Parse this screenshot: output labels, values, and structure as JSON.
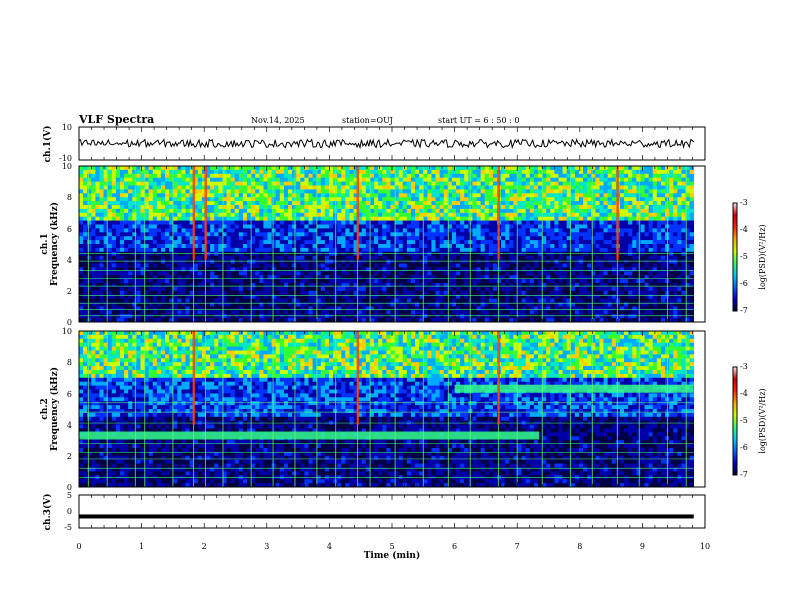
{
  "chart_data": {
    "type": "heatmap",
    "title": "VLF Spectra",
    "date": "Nov.14, 2025",
    "station": "station=OUJ",
    "start": "start  UT =  6 : 50 : 0",
    "xlabel": "Time  (min)",
    "xlim": [
      0,
      10
    ],
    "xticks": [
      "0",
      "1",
      "2",
      "3",
      "4",
      "5",
      "6",
      "7",
      "8",
      "9",
      "10"
    ],
    "data_end_min": 9.82,
    "panels": [
      {
        "id": "ch1-waveform",
        "ylabel": "ch.1(V)",
        "ylim": [
          -10,
          10
        ],
        "yticks": [
          "10",
          "-10"
        ],
        "baseline": 0,
        "noise_amplitude": 0.6
      },
      {
        "id": "ch1-spectrogram",
        "ylabel_line1": "ch.1",
        "ylabel_line2": "Frequency  (kHz)",
        "ylim": [
          0,
          10
        ],
        "yticks": [
          "0",
          "2",
          "4",
          "6",
          "8",
          "10"
        ],
        "features": {
          "low_band_kHz": [
            0,
            4
          ],
          "high_band_kHz": [
            6.5,
            10
          ],
          "horizontal_lines_kHz": [
            0.4,
            0.8,
            1.2,
            1.7,
            2.3,
            2.8,
            3.3,
            3.9,
            4.4
          ],
          "sferics_min": [
            0.15,
            0.45,
            0.9,
            1.05,
            1.5,
            1.83,
            2.02,
            2.3,
            2.75,
            3.1,
            3.45,
            3.8,
            4.1,
            4.45,
            4.65,
            5.05,
            5.5,
            5.9,
            6.25,
            6.7,
            7.0,
            7.4,
            7.85,
            8.2,
            8.6,
            8.95,
            9.4,
            9.7
          ],
          "strong_sferics_min": [
            1.83,
            2.02,
            4.45,
            6.7,
            8.6
          ]
        }
      },
      {
        "id": "ch2-spectrogram",
        "ylabel_line1": "ch.2",
        "ylabel_line2": "Frequency  (kHz)",
        "ylim": [
          0,
          10
        ],
        "yticks": [
          "0",
          "2",
          "4",
          "6",
          "8",
          "10"
        ],
        "features": {
          "emission_band": {
            "freq_kHz": 3.3,
            "t_start_min": 0,
            "t_end_min": 7.35
          },
          "emission_band_2": {
            "freq_kHz": 6.3,
            "t_start_min": 6.0,
            "t_end_min": 9.82
          },
          "horizontal_lines_kHz": [
            0.6,
            1.2,
            1.8,
            2.2,
            2.8,
            4.1,
            4.8,
            5.4
          ],
          "sferics_min": [
            0.15,
            0.45,
            0.9,
            1.05,
            1.5,
            1.83,
            2.02,
            2.3,
            2.75,
            3.1,
            3.45,
            3.8,
            4.1,
            4.45,
            4.65,
            5.05,
            5.5,
            5.9,
            6.25,
            6.7,
            7.0,
            7.4,
            7.85,
            8.2,
            8.6,
            8.95,
            9.4,
            9.7
          ],
          "strong_sferics_min": [
            1.83,
            4.45,
            6.7
          ]
        }
      },
      {
        "id": "ch3-waveform",
        "ylabel": "ch.3(V)",
        "ylim": [
          -5,
          5
        ],
        "yticks": [
          "5",
          "0",
          "-5"
        ],
        "baseline": -1.5
      }
    ],
    "colorbars": [
      {
        "id": "cb1",
        "label": "log(PSD)(V²/Hz)",
        "range": [
          -7,
          -3
        ],
        "ticks": [
          "-3",
          "-4",
          "-5",
          "-6",
          "-7"
        ]
      },
      {
        "id": "cb2",
        "label": "log(PSD)(V²/Hz)",
        "range": [
          -7,
          -3
        ],
        "ticks": [
          "-3",
          "-4",
          "-5",
          "-6",
          "-7"
        ]
      }
    ],
    "colormap": [
      "#000044",
      "#0000a8",
      "#0033ff",
      "#00aaff",
      "#00e6c8",
      "#33ff33",
      "#ccff00",
      "#ffcc00",
      "#ff4400",
      "#cc0000",
      "#ffffff"
    ]
  }
}
